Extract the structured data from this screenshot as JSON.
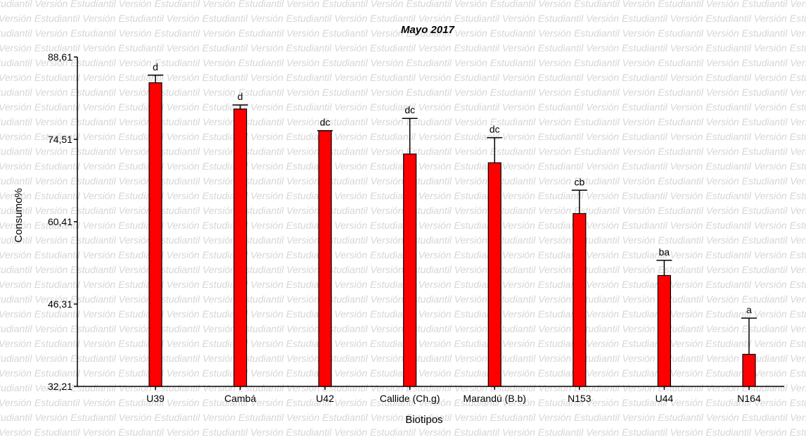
{
  "watermark_text": "Versión Estudiantil",
  "chart_data": {
    "type": "bar",
    "title": "Mayo 2017",
    "xlabel": "Biotipos",
    "ylabel": "Consumo%",
    "ylim": [
      32.21,
      88.61
    ],
    "yticks": [
      "32,21",
      "46,31",
      "60,41",
      "74,51",
      "88,61"
    ],
    "ytick_values": [
      32.21,
      46.31,
      60.41,
      74.51,
      88.61
    ],
    "categories": [
      "U39",
      "Cambá",
      "U42",
      "Callide (Ch.g)",
      "Marandú (B.b)",
      "N153",
      "U44",
      "N164"
    ],
    "values": [
      84.2,
      79.7,
      76.0,
      72.0,
      70.5,
      61.8,
      51.2,
      37.7
    ],
    "error_upper": [
      85.5,
      80.4,
      76.0,
      78.1,
      74.8,
      65.8,
      53.8,
      43.9
    ],
    "letters": [
      "d",
      "d",
      "dc",
      "dc",
      "dc",
      "cb",
      "ba",
      "a"
    ],
    "bar_color": "#ff0000",
    "grid": false,
    "legend": "none"
  }
}
